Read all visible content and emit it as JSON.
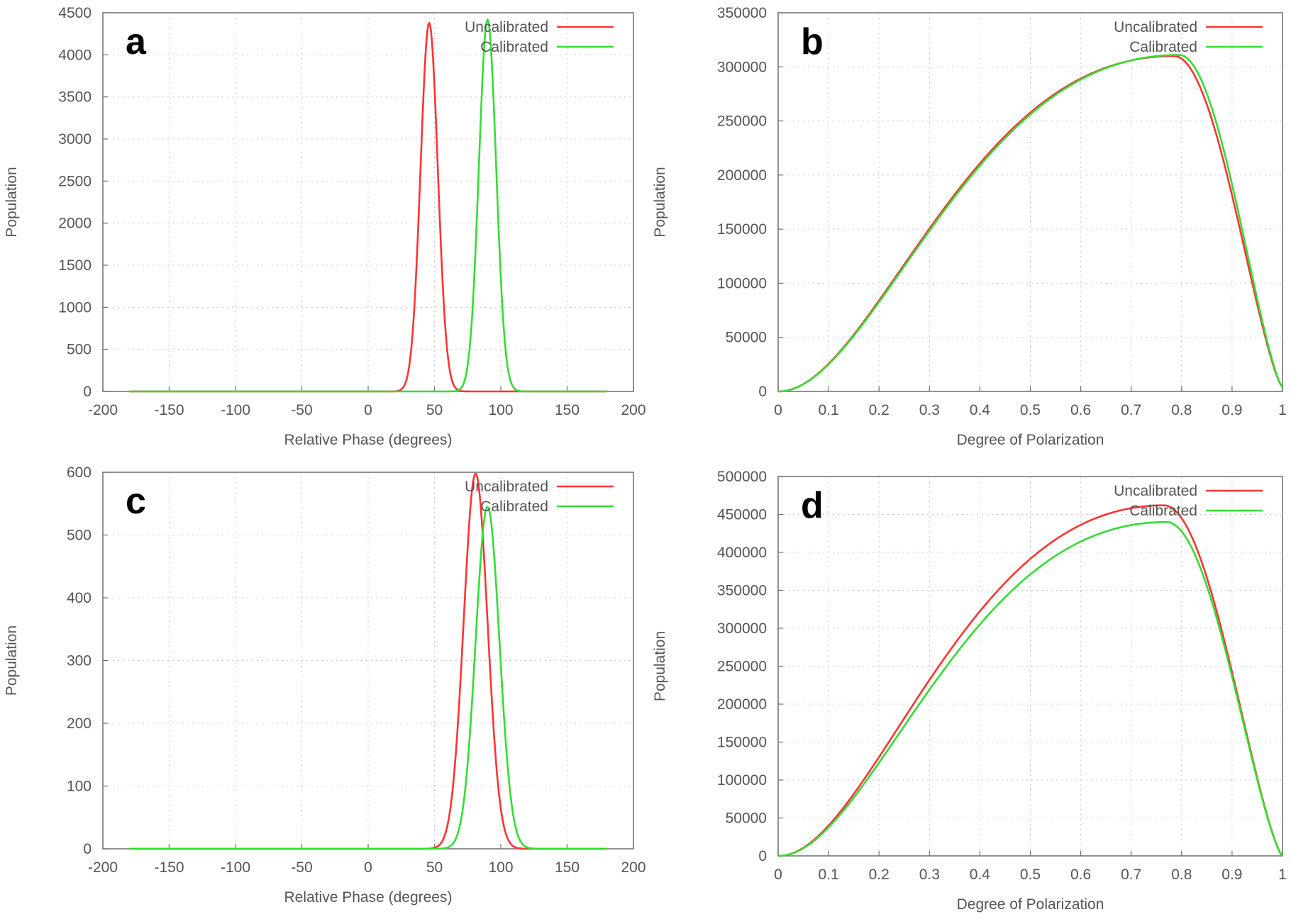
{
  "chart_data": [
    {
      "panel": "a",
      "type": "line",
      "xlabel": "Relative Phase (degrees)",
      "ylabel": "Population",
      "xlim": [
        -200,
        200
      ],
      "ylim": [
        0,
        4500
      ],
      "xticks": [
        "-200",
        "-150",
        "-100",
        "-50",
        "0",
        "50",
        "100",
        "150",
        "200"
      ],
      "yticks": [
        "0",
        "500",
        "1000",
        "1500",
        "2000",
        "2500",
        "3000",
        "3500",
        "4000",
        "4500"
      ],
      "grid": true,
      "legend": "top-right",
      "x_range": [
        -180,
        180
      ],
      "series": [
        {
          "name": "Uncalibrated",
          "color": "#ff3333",
          "shape": "gaussian",
          "peak_x": 46,
          "peak_y": 4380,
          "sigma": 6.5
        },
        {
          "name": "Calibrated",
          "color": "#33dd33",
          "shape": "gaussian",
          "peak_x": 90,
          "peak_y": 4420,
          "sigma": 6.5
        }
      ]
    },
    {
      "panel": "b",
      "type": "line",
      "xlabel": "Degree of Polarization",
      "ylabel": "Population",
      "xlim": [
        0,
        1
      ],
      "ylim": [
        0,
        350000
      ],
      "xticks": [
        "0",
        "0.1",
        "0.2",
        "0.3",
        "0.4",
        "0.5",
        "0.6",
        "0.7",
        "0.8",
        "0.9",
        "1"
      ],
      "yticks": [
        "0",
        "50000",
        "100000",
        "150000",
        "200000",
        "250000",
        "300000",
        "350000"
      ],
      "grid": true,
      "legend": "top-right",
      "series": [
        {
          "name": "Uncalibrated",
          "color": "#ff3333",
          "shape": "skewed",
          "peak_x": 0.785,
          "peak_y": 310000,
          "end_y": 4000
        },
        {
          "name": "Calibrated",
          "color": "#33dd33",
          "shape": "skewed",
          "peak_x": 0.795,
          "peak_y": 311000,
          "end_y": 4000
        }
      ]
    },
    {
      "panel": "c",
      "type": "line",
      "xlabel": "Relative Phase (degrees)",
      "ylabel": "Population",
      "xlim": [
        -200,
        200
      ],
      "ylim": [
        0,
        600
      ],
      "xticks": [
        "-200",
        "-150",
        "-100",
        "-50",
        "0",
        "50",
        "100",
        "150",
        "200"
      ],
      "yticks": [
        "0",
        "100",
        "200",
        "300",
        "400",
        "500",
        "600"
      ],
      "grid": true,
      "legend": "top-right",
      "x_range": [
        -180,
        180
      ],
      "series": [
        {
          "name": "Uncalibrated",
          "color": "#ff3333",
          "shape": "gaussian",
          "peak_x": 81,
          "peak_y": 598,
          "sigma": 9
        },
        {
          "name": "Calibrated",
          "color": "#33dd33",
          "shape": "gaussian",
          "peak_x": 90,
          "peak_y": 545,
          "sigma": 9
        }
      ]
    },
    {
      "panel": "d",
      "type": "line",
      "xlabel": "Degree of Polarization",
      "ylabel": "Population",
      "xlim": [
        0,
        1
      ],
      "ylim": [
        0,
        500000
      ],
      "xticks": [
        "0",
        "0.1",
        "0.2",
        "0.3",
        "0.4",
        "0.5",
        "0.6",
        "0.7",
        "0.8",
        "0.9",
        "1"
      ],
      "yticks": [
        "0",
        "50000",
        "100000",
        "150000",
        "200000",
        "250000",
        "300000",
        "350000",
        "400000",
        "450000",
        "500000"
      ],
      "grid": true,
      "legend": "top-right",
      "series": [
        {
          "name": "Uncalibrated",
          "color": "#ff3333",
          "shape": "skewed",
          "peak_x": 0.765,
          "peak_y": 462000,
          "end_y": 0
        },
        {
          "name": "Calibrated",
          "color": "#33dd33",
          "shape": "skewed",
          "peak_x": 0.77,
          "peak_y": 440000,
          "end_y": 0
        }
      ]
    }
  ]
}
